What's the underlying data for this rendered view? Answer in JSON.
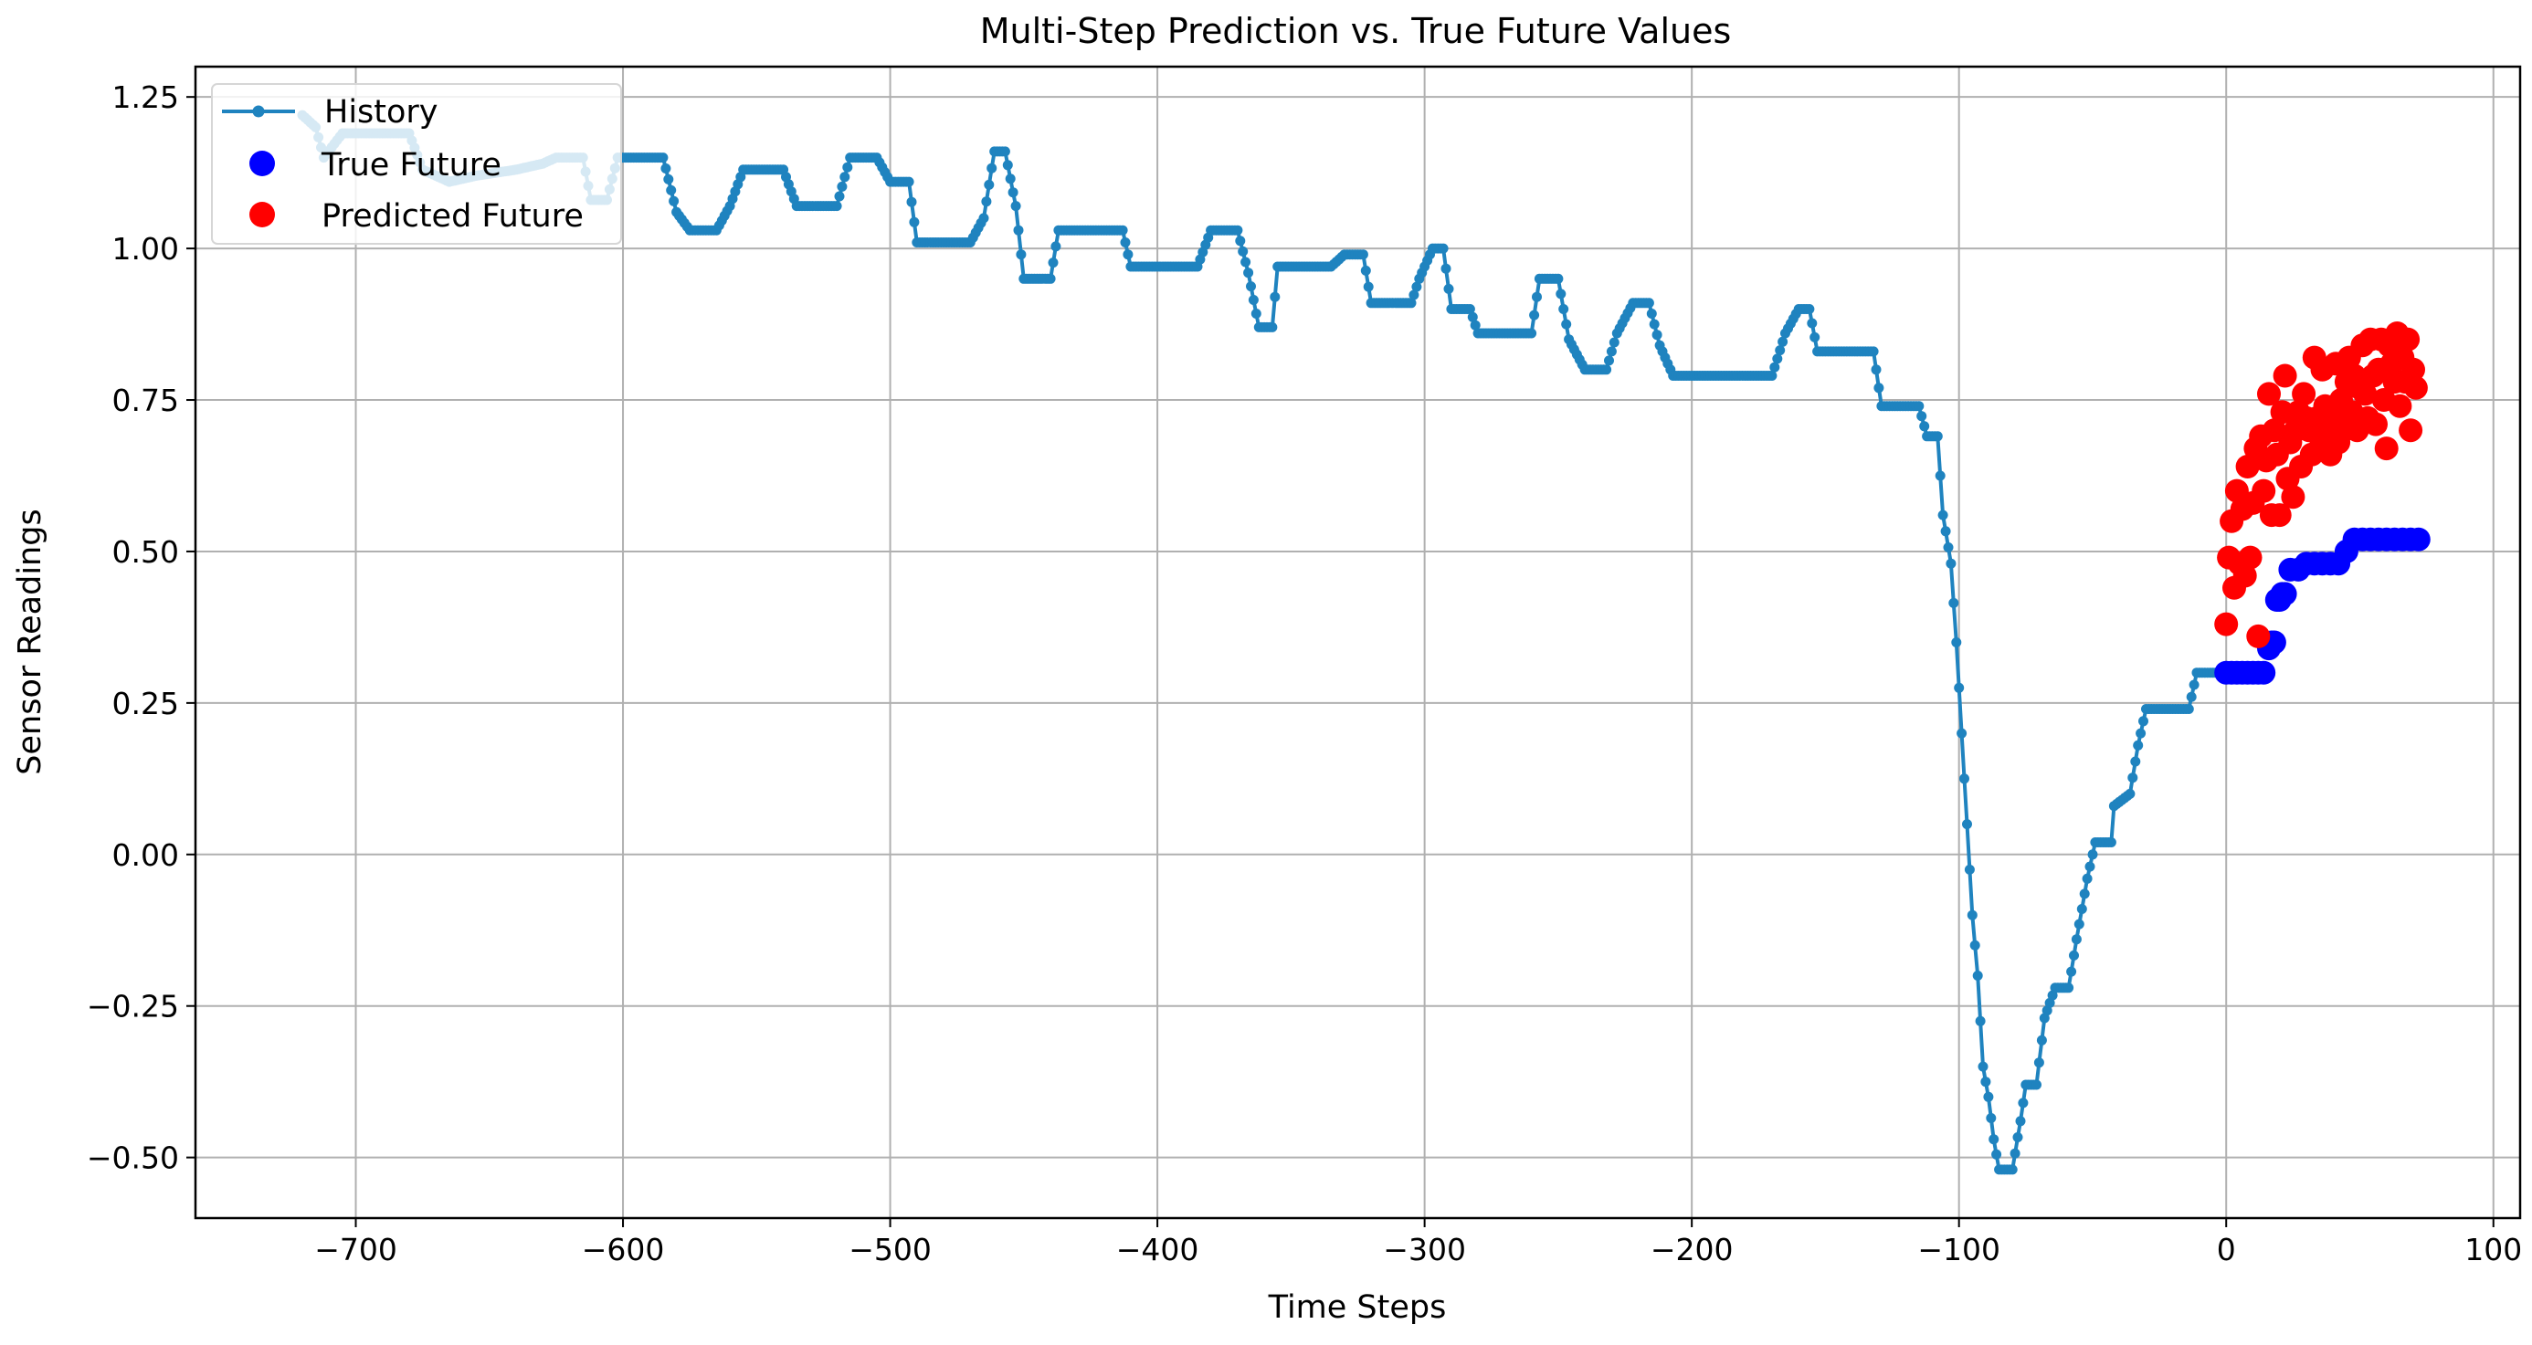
{
  "chart_data": {
    "type": "line",
    "title": "Multi-Step Prediction vs. True Future Values",
    "xlabel": "Time Steps",
    "ylabel": "Sensor Readings",
    "xlim": [
      -760,
      110
    ],
    "ylim": [
      -0.6,
      1.3
    ],
    "xticks": [
      -700,
      -600,
      -500,
      -400,
      -300,
      -200,
      -100,
      0,
      100
    ],
    "xtick_labels": [
      "−700",
      "−600",
      "−500",
      "−400",
      "−300",
      "−200",
      "−100",
      "0",
      "100"
    ],
    "yticks": [
      -0.5,
      -0.25,
      0,
      0.25,
      0.5,
      0.75,
      1.0,
      1.25
    ],
    "ytick_labels": [
      "−0.50",
      "−0.25",
      "0.00",
      "0.25",
      "0.50",
      "0.75",
      "1.00",
      "1.25"
    ],
    "grid": true,
    "legend_position": "top-left",
    "series": [
      {
        "name": "History",
        "style": "line-with-markers",
        "color": "#1f83bf",
        "points": [
          [
            -720,
            1.22
          ],
          [
            -715,
            1.2
          ],
          [
            -712,
            1.15
          ],
          [
            -705,
            1.19
          ],
          [
            -690,
            1.19
          ],
          [
            -680,
            1.19
          ],
          [
            -675,
            1.13
          ],
          [
            -665,
            1.11
          ],
          [
            -655,
            1.12
          ],
          [
            -640,
            1.13
          ],
          [
            -630,
            1.14
          ],
          [
            -625,
            1.15
          ],
          [
            -615,
            1.15
          ],
          [
            -612,
            1.08
          ],
          [
            -606,
            1.08
          ],
          [
            -602,
            1.15
          ],
          [
            -585,
            1.15
          ],
          [
            -580,
            1.06
          ],
          [
            -575,
            1.03
          ],
          [
            -565,
            1.03
          ],
          [
            -560,
            1.07
          ],
          [
            -555,
            1.13
          ],
          [
            -540,
            1.13
          ],
          [
            -535,
            1.07
          ],
          [
            -520,
            1.07
          ],
          [
            -515,
            1.15
          ],
          [
            -505,
            1.15
          ],
          [
            -500,
            1.11
          ],
          [
            -493,
            1.11
          ],
          [
            -490,
            1.01
          ],
          [
            -470,
            1.01
          ],
          [
            -465,
            1.05
          ],
          [
            -461,
            1.16
          ],
          [
            -457,
            1.16
          ],
          [
            -453,
            1.07
          ],
          [
            -450,
            0.95
          ],
          [
            -440,
            0.95
          ],
          [
            -437,
            1.03
          ],
          [
            -413,
            1.03
          ],
          [
            -410,
            0.97
          ],
          [
            -385,
            0.97
          ],
          [
            -380,
            1.03
          ],
          [
            -370,
            1.03
          ],
          [
            -366,
            0.96
          ],
          [
            -362,
            0.87
          ],
          [
            -357,
            0.87
          ],
          [
            -355,
            0.97
          ],
          [
            -335,
            0.97
          ],
          [
            -330,
            0.99
          ],
          [
            -323,
            0.99
          ],
          [
            -320,
            0.91
          ],
          [
            -305,
            0.91
          ],
          [
            -302,
            0.95
          ],
          [
            -297,
            1.0
          ],
          [
            -293,
            1.0
          ],
          [
            -290,
            0.9
          ],
          [
            -283,
            0.9
          ],
          [
            -280,
            0.86
          ],
          [
            -260,
            0.86
          ],
          [
            -257,
            0.95
          ],
          [
            -250,
            0.95
          ],
          [
            -246,
            0.85
          ],
          [
            -240,
            0.8
          ],
          [
            -232,
            0.8
          ],
          [
            -228,
            0.86
          ],
          [
            -222,
            0.91
          ],
          [
            -216,
            0.91
          ],
          [
            -212,
            0.84
          ],
          [
            -207,
            0.79
          ],
          [
            -170,
            0.79
          ],
          [
            -165,
            0.86
          ],
          [
            -160,
            0.9
          ],
          [
            -156,
            0.9
          ],
          [
            -153,
            0.83
          ],
          [
            -132,
            0.83
          ],
          [
            -129,
            0.74
          ],
          [
            -115,
            0.74
          ],
          [
            -112,
            0.69
          ],
          [
            -108,
            0.69
          ],
          [
            -106,
            0.56
          ],
          [
            -103,
            0.48
          ],
          [
            -101,
            0.35
          ],
          [
            -99,
            0.2
          ],
          [
            -97,
            0.05
          ],
          [
            -95,
            -0.1
          ],
          [
            -93,
            -0.2
          ],
          [
            -91,
            -0.35
          ],
          [
            -89,
            -0.4
          ],
          [
            -87,
            -0.47
          ],
          [
            -85,
            -0.52
          ],
          [
            -80,
            -0.52
          ],
          [
            -77,
            -0.44
          ],
          [
            -75,
            -0.38
          ],
          [
            -71,
            -0.38
          ],
          [
            -68,
            -0.27
          ],
          [
            -64,
            -0.22
          ],
          [
            -59,
            -0.22
          ],
          [
            -56,
            -0.14
          ],
          [
            -52,
            -0.04
          ],
          [
            -49,
            0.02
          ],
          [
            -43,
            0.02
          ],
          [
            -42,
            0.08
          ],
          [
            -36,
            0.1
          ],
          [
            -33,
            0.18
          ],
          [
            -30,
            0.24
          ],
          [
            -14,
            0.24
          ],
          [
            -11,
            0.3
          ],
          [
            -1,
            0.3
          ]
        ]
      },
      {
        "name": "True Future",
        "style": "markers",
        "color": "#0000ff",
        "points": [
          [
            0,
            0.3
          ],
          [
            2,
            0.3
          ],
          [
            4,
            0.3
          ],
          [
            6,
            0.3
          ],
          [
            8,
            0.3
          ],
          [
            10,
            0.3
          ],
          [
            12,
            0.3
          ],
          [
            14,
            0.3
          ],
          [
            16,
            0.34
          ],
          [
            17,
            0.35
          ],
          [
            18,
            0.35
          ],
          [
            19,
            0.42
          ],
          [
            20,
            0.42
          ],
          [
            21,
            0.43
          ],
          [
            22,
            0.43
          ],
          [
            24,
            0.47
          ],
          [
            27,
            0.47
          ],
          [
            30,
            0.48
          ],
          [
            33,
            0.48
          ],
          [
            36,
            0.48
          ],
          [
            39,
            0.48
          ],
          [
            42,
            0.48
          ],
          [
            45,
            0.5
          ],
          [
            48,
            0.52
          ],
          [
            51,
            0.52
          ],
          [
            54,
            0.52
          ],
          [
            57,
            0.52
          ],
          [
            60,
            0.52
          ],
          [
            63,
            0.52
          ],
          [
            66,
            0.52
          ],
          [
            69,
            0.52
          ],
          [
            72,
            0.52
          ]
        ]
      },
      {
        "name": "Predicted Future",
        "style": "markers",
        "color": "#ff0000",
        "points": [
          [
            0,
            0.38
          ],
          [
            1,
            0.49
          ],
          [
            2,
            0.55
          ],
          [
            3,
            0.44
          ],
          [
            4,
            0.6
          ],
          [
            5,
            0.48
          ],
          [
            6,
            0.57
          ],
          [
            7,
            0.46
          ],
          [
            8,
            0.64
          ],
          [
            9,
            0.49
          ],
          [
            10,
            0.58
          ],
          [
            11,
            0.67
          ],
          [
            12,
            0.36
          ],
          [
            13,
            0.69
          ],
          [
            14,
            0.6
          ],
          [
            15,
            0.65
          ],
          [
            16,
            0.76
          ],
          [
            17,
            0.56
          ],
          [
            18,
            0.7
          ],
          [
            19,
            0.66
          ],
          [
            20,
            0.56
          ],
          [
            21,
            0.73
          ],
          [
            22,
            0.79
          ],
          [
            23,
            0.62
          ],
          [
            24,
            0.68
          ],
          [
            25,
            0.59
          ],
          [
            26,
            0.7
          ],
          [
            27,
            0.73
          ],
          [
            28,
            0.64
          ],
          [
            29,
            0.76
          ],
          [
            30,
            0.72
          ],
          [
            31,
            0.7
          ],
          [
            32,
            0.66
          ],
          [
            33,
            0.82
          ],
          [
            34,
            0.72
          ],
          [
            35,
            0.69
          ],
          [
            36,
            0.8
          ],
          [
            37,
            0.74
          ],
          [
            38,
            0.71
          ],
          [
            39,
            0.66
          ],
          [
            40,
            0.72
          ],
          [
            41,
            0.81
          ],
          [
            42,
            0.68
          ],
          [
            43,
            0.75
          ],
          [
            44,
            0.7
          ],
          [
            45,
            0.78
          ],
          [
            46,
            0.82
          ],
          [
            47,
            0.73
          ],
          [
            48,
            0.79
          ],
          [
            49,
            0.7
          ],
          [
            50,
            0.77
          ],
          [
            51,
            0.84
          ],
          [
            52,
            0.76
          ],
          [
            53,
            0.72
          ],
          [
            54,
            0.85
          ],
          [
            55,
            0.79
          ],
          [
            56,
            0.71
          ],
          [
            57,
            0.8
          ],
          [
            58,
            0.85
          ],
          [
            59,
            0.75
          ],
          [
            60,
            0.67
          ],
          [
            61,
            0.84
          ],
          [
            62,
            0.81
          ],
          [
            63,
            0.78
          ],
          [
            64,
            0.86
          ],
          [
            65,
            0.74
          ],
          [
            66,
            0.82
          ],
          [
            67,
            0.78
          ],
          [
            68,
            0.85
          ],
          [
            69,
            0.7
          ],
          [
            70,
            0.8
          ],
          [
            71,
            0.77
          ]
        ]
      }
    ]
  }
}
